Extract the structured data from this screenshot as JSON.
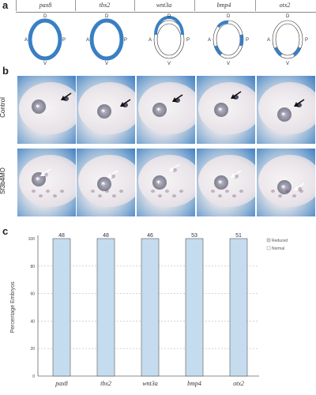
{
  "panel_a": {
    "letter": "a",
    "genes": [
      "pax8",
      "tbx2",
      "wnt3a",
      "bmp4",
      "otx2"
    ],
    "axis_labels": {
      "dorsal": "D",
      "ventral": "V",
      "anterior": "A",
      "posterior": "P"
    },
    "ring_color": "#3a7fc4"
  },
  "panel_b": {
    "letter": "b",
    "rows": [
      {
        "label": "Control"
      },
      {
        "label": "Sf3b4MO"
      }
    ],
    "star_mark": "*",
    "control_arrow_color": "#111111",
    "mo_arrow_color": "#ffffff"
  },
  "panel_c": {
    "letter": "c"
  },
  "chart_data": {
    "type": "bar",
    "categories": [
      "pax8",
      "tbx2",
      "wnt3a",
      "bmp4",
      "otx2"
    ],
    "n_labels": [
      "48",
      "48",
      "46",
      "53",
      "51"
    ],
    "series": [
      {
        "name": "Reduced",
        "values": [
          100,
          100,
          100,
          100,
          100
        ],
        "color": "#c5dcef"
      },
      {
        "name": "Normal",
        "values": [
          0,
          0,
          0,
          0,
          0
        ],
        "color": "#ffffff"
      }
    ],
    "ylabel": "Percentage Embryos",
    "ylim": [
      0,
      100
    ],
    "yticks": [
      0,
      20,
      40,
      60,
      80,
      100
    ],
    "gridlines": [
      20,
      40,
      60,
      80
    ],
    "legend": {
      "placement": "top-right",
      "entries": [
        "Reduced",
        "Normal"
      ]
    }
  }
}
